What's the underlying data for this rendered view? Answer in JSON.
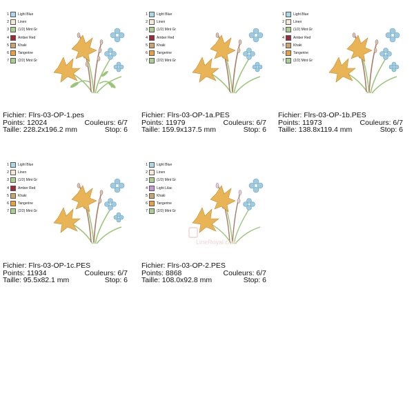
{
  "colors": {
    "light_blue": "#a9d8e8",
    "linen": "#f6e9d6",
    "mint": "#a8d08c",
    "amber_red": "#9b2a3a",
    "khaki": "#c9a56a",
    "tangerine": "#e8a040",
    "light_lilac": "#c898d4",
    "flower_orange": "#e9b456",
    "flower_blue": "#9fcbe0",
    "stem": "#9cc57a",
    "twig": "#a87c66",
    "catkin": "#d8c2b6"
  },
  "cards": [
    {
      "legend": [
        {
          "num": "1",
          "name": "Light Blue",
          "color": "#a9d8e8"
        },
        {
          "num": "2",
          "name": "Linen",
          "color": "#f6e9d6"
        },
        {
          "num": "3",
          "name": "(1/2) Mint Gr",
          "color": "#a8d08c"
        },
        {
          "num": "4",
          "name": "Amber Red",
          "color": "#9b2a3a"
        },
        {
          "num": "5",
          "name": "Khaki",
          "color": "#c9a56a"
        },
        {
          "num": "6",
          "name": "Tangerine",
          "color": "#e8a040"
        },
        {
          "num": "7",
          "name": "(2/2) Mint Gr",
          "color": "#a8d08c"
        }
      ],
      "fichier": "Fichier: Flrs-03-OP-1.pes",
      "points": "Points: 12024",
      "couleurs": "Couleurs: 6/7",
      "taille": "Taille: 228.2x196.2 mm",
      "stop": "Stop: 6"
    },
    {
      "legend": [
        {
          "num": "1",
          "name": "Light Blue",
          "color": "#a9d8e8"
        },
        {
          "num": "2",
          "name": "Linen",
          "color": "#f6e9d6"
        },
        {
          "num": "3",
          "name": "(1/2) Mint Gr",
          "color": "#a8d08c"
        },
        {
          "num": "4",
          "name": "Amber Red",
          "color": "#9b2a3a"
        },
        {
          "num": "5",
          "name": "Khaki",
          "color": "#c9a56a"
        },
        {
          "num": "6",
          "name": "Tangerine",
          "color": "#e8a040"
        },
        {
          "num": "7",
          "name": "(2/2) Mint Gr",
          "color": "#a8d08c"
        }
      ],
      "fichier": "Fichier: Flrs-03-OP-1a.PES",
      "points": "Points: 11979",
      "couleurs": "Couleurs: 6/7",
      "taille": "Taille: 159.9x137.5 mm",
      "stop": "Stop: 6"
    },
    {
      "legend": [
        {
          "num": "1",
          "name": "Light Blue",
          "color": "#a9d8e8"
        },
        {
          "num": "2",
          "name": "Linen",
          "color": "#f6e9d6"
        },
        {
          "num": "3",
          "name": "(1/2) Mint Gr",
          "color": "#a8d08c"
        },
        {
          "num": "4",
          "name": "Amber Red",
          "color": "#9b2a3a"
        },
        {
          "num": "5",
          "name": "Khaki",
          "color": "#c9a56a"
        },
        {
          "num": "6",
          "name": "Tangerine",
          "color": "#e8a040"
        },
        {
          "num": "7",
          "name": "(2/2) Mint Gr",
          "color": "#a8d08c"
        }
      ],
      "fichier": "Fichier: Flrs-03-OP-1b.PES",
      "points": "Points: 11973",
      "couleurs": "Couleurs: 6/7",
      "taille": "Taille: 138.8x119.4 mm",
      "stop": "Stop: 6"
    },
    {
      "legend": [
        {
          "num": "1",
          "name": "Light Blue",
          "color": "#a9d8e8"
        },
        {
          "num": "2",
          "name": "Linen",
          "color": "#f6e9d6"
        },
        {
          "num": "3",
          "name": "(1/2) Mint Gr",
          "color": "#a8d08c"
        },
        {
          "num": "4",
          "name": "Amber Red",
          "color": "#9b2a3a"
        },
        {
          "num": "5",
          "name": "Khaki",
          "color": "#c9a56a"
        },
        {
          "num": "6",
          "name": "Tangerine",
          "color": "#e8a040"
        },
        {
          "num": "7",
          "name": "(2/2) Mint Gr",
          "color": "#a8d08c"
        }
      ],
      "fichier": "Fichier: Flrs-03-OP-1c.PES",
      "points": "Points: 11934",
      "couleurs": "Couleurs: 6/7",
      "taille": "Taille: 95.5x82.1 mm",
      "stop": "Stop: 6"
    },
    {
      "legend": [
        {
          "num": "1",
          "name": "Light Blue",
          "color": "#a9d8e8"
        },
        {
          "num": "2",
          "name": "Linen",
          "color": "#f6e9d6"
        },
        {
          "num": "3",
          "name": "(1/2) Mint Gr",
          "color": "#a8d08c"
        },
        {
          "num": "4",
          "name": "Light Lilac",
          "color": "#c898d4"
        },
        {
          "num": "5",
          "name": "Khaki",
          "color": "#c9a56a"
        },
        {
          "num": "6",
          "name": "Tangerine",
          "color": "#e8a040"
        },
        {
          "num": "7",
          "name": "(2/2) Mint Gr",
          "color": "#a8d08c"
        }
      ],
      "fichier": "Fichier: Flrs-03-OP-2.PES",
      "points": "Points: 8868",
      "couleurs": "Couleurs: 6/7",
      "taille": "Taille: 108.0x92.8 mm",
      "stop": "Stop: 6"
    }
  ],
  "watermark": "LineRoyal.com"
}
